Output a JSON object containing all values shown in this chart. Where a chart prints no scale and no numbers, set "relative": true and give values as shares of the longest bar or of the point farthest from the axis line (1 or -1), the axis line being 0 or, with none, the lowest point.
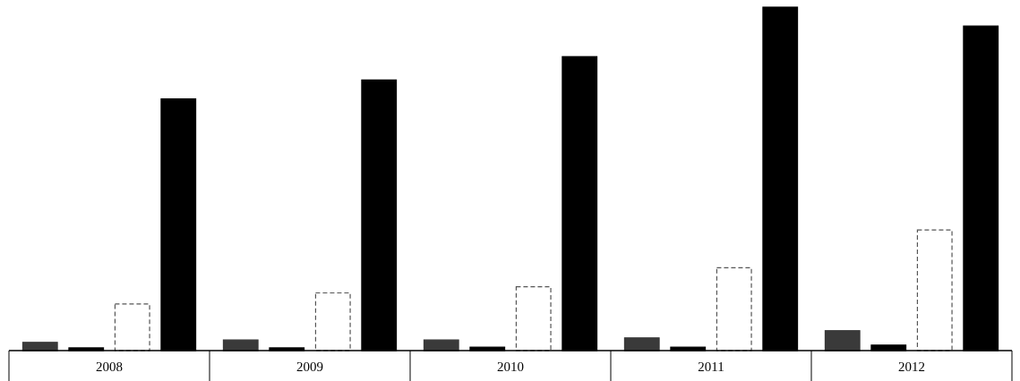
{
  "chart_data": {
    "type": "bar",
    "relative": true,
    "categories": [
      "2008",
      "2009",
      "2010",
      "2011",
      "2012"
    ],
    "series": [
      {
        "color": "#3a3a3a",
        "values": [
          0.024,
          0.031,
          0.031,
          0.037,
          0.058
        ]
      },
      {
        "color": "#000000",
        "values": [
          0.008,
          0.008,
          0.01,
          0.01,
          0.016
        ]
      },
      {
        "color": "#ffffff",
        "values": [
          0.136,
          0.168,
          0.186,
          0.241,
          0.351
        ]
      },
      {
        "color": "#000000",
        "values": [
          0.733,
          0.788,
          0.856,
          1,
          0.945
        ]
      }
    ]
  }
}
